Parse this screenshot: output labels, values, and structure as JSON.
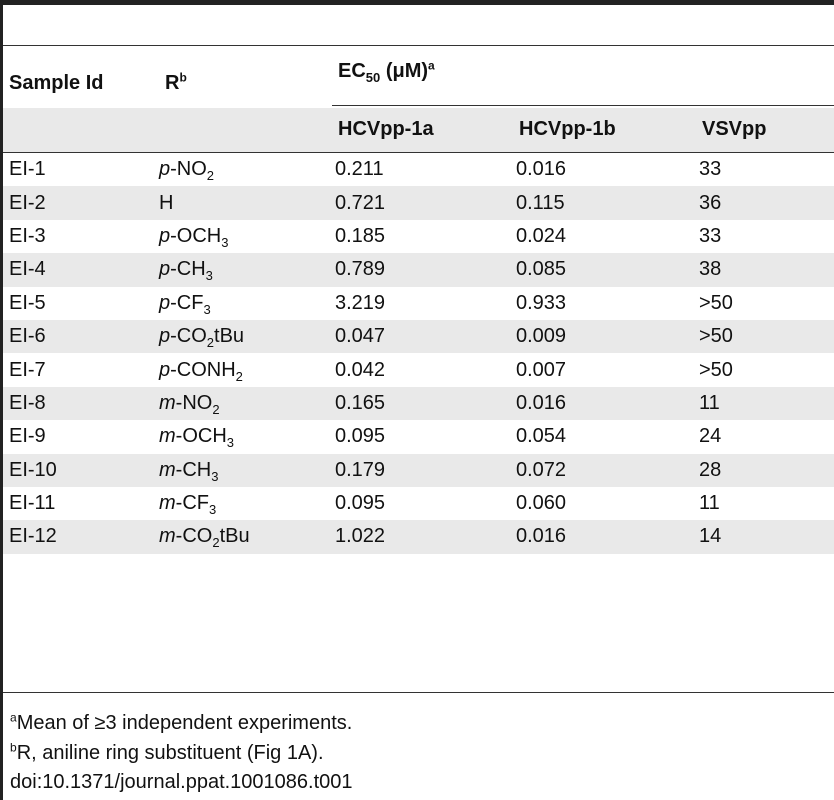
{
  "header": {
    "col1": "Sample Id",
    "col2_main": "R",
    "col2_sup": "b",
    "group_main": "EC",
    "group_sub": "50",
    "group_unit": " (μM)",
    "group_sup": "a",
    "sub_headers": [
      "HCVpp-1a",
      "HCVpp-1b",
      "VSVpp"
    ]
  },
  "rows": [
    {
      "id": "EI-1",
      "prefix": "p",
      "base": "-NO",
      "sub": "2",
      "tail": "",
      "hcv1a": "0.211",
      "hcv1b": "0.016",
      "vsv": "33"
    },
    {
      "id": "EI-2",
      "prefix": "",
      "base": "H",
      "sub": "",
      "tail": "",
      "hcv1a": "0.721",
      "hcv1b": "0.115",
      "vsv": "36"
    },
    {
      "id": "EI-3",
      "prefix": "p",
      "base": "-OCH",
      "sub": "3",
      "tail": "",
      "hcv1a": "0.185",
      "hcv1b": "0.024",
      "vsv": "33"
    },
    {
      "id": "EI-4",
      "prefix": "p",
      "base": "-CH",
      "sub": "3",
      "tail": "",
      "hcv1a": "0.789",
      "hcv1b": "0.085",
      "vsv": "38"
    },
    {
      "id": "EI-5",
      "prefix": "p",
      "base": "-CF",
      "sub": "3",
      "tail": "",
      "hcv1a": "3.219",
      "hcv1b": "0.933",
      "vsv": ">50"
    },
    {
      "id": "EI-6",
      "prefix": "p",
      "base": "-CO",
      "sub": "2",
      "tail": "tBu",
      "hcv1a": "0.047",
      "hcv1b": "0.009",
      "vsv": ">50"
    },
    {
      "id": "EI-7",
      "prefix": "p",
      "base": "-CONH",
      "sub": "2",
      "tail": "",
      "hcv1a": "0.042",
      "hcv1b": "0.007",
      "vsv": ">50"
    },
    {
      "id": "EI-8",
      "prefix": "m",
      "base": "-NO",
      "sub": "2",
      "tail": "",
      "hcv1a": "0.165",
      "hcv1b": "0.016",
      "vsv": "11"
    },
    {
      "id": "EI-9",
      "prefix": "m",
      "base": "-OCH",
      "sub": "3",
      "tail": "",
      "hcv1a": "0.095",
      "hcv1b": "0.054",
      "vsv": "24"
    },
    {
      "id": "EI-10",
      "prefix": "m",
      "base": "-CH",
      "sub": "3",
      "tail": "",
      "hcv1a": "0.179",
      "hcv1b": "0.072",
      "vsv": "28"
    },
    {
      "id": "EI-11",
      "prefix": "m",
      "base": "-CF",
      "sub": "3",
      "tail": "",
      "hcv1a": "0.095",
      "hcv1b": "0.060",
      "vsv": "11"
    },
    {
      "id": "EI-12",
      "prefix": "m",
      "base": "-CO",
      "sub": "2",
      "tail": "tBu",
      "hcv1a": "1.022",
      "hcv1b": "0.016",
      "vsv": "14"
    }
  ],
  "footnotes": {
    "a_mark": "a",
    "a_text": "Mean of ≥3 independent experiments.",
    "b_mark": "b",
    "b_text": "R, aniline ring substituent (Fig 1A).",
    "doi": "doi:10.1371/journal.ppat.1001086.t001"
  }
}
